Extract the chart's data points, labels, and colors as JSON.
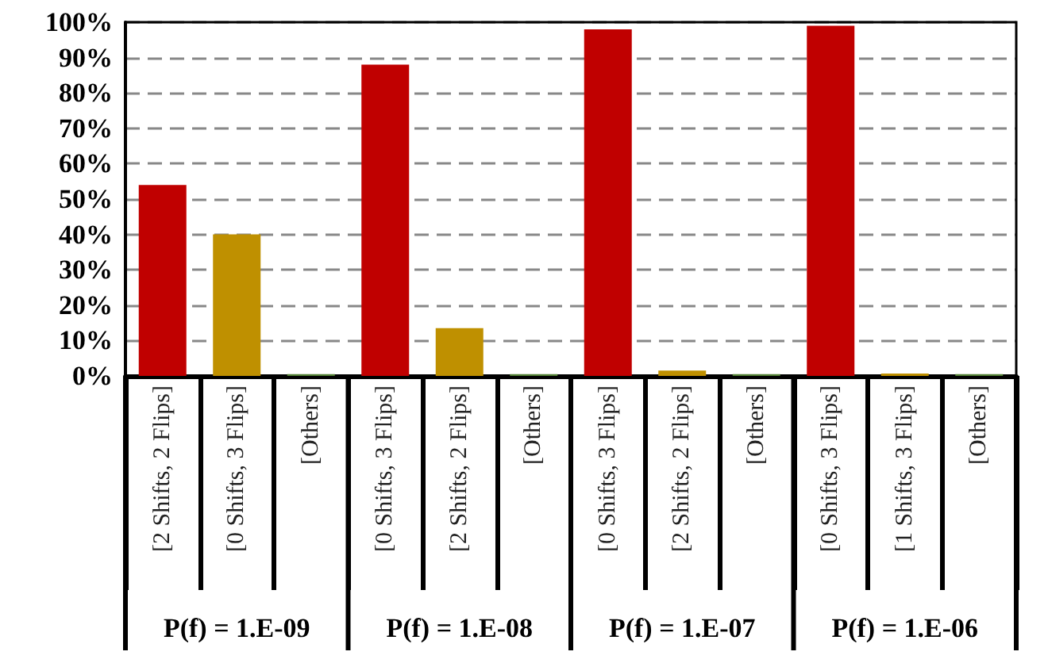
{
  "chart_data": {
    "type": "bar",
    "categories": [
      "[2 Shifts, 2 Flips]",
      "[0 Shifts, 3 Flips]",
      "[Others]",
      "[0 Shifts, 3 Flips]",
      "[2 Shifts, 2 Flips]",
      "[Others]",
      "[0 Shifts, 3 Flips]",
      "[2 Shifts, 2 Flips]",
      "[Others]",
      "[0 Shifts, 3 Flips]",
      "[1 Shifts, 3 Flips]",
      "[Others]"
    ],
    "values": [
      54,
      40,
      0.5,
      88,
      13.5,
      0.5,
      98,
      1.5,
      0.5,
      99,
      0.7,
      0.5
    ],
    "colors": [
      "#c00000",
      "#bf9000",
      "#548235",
      "#c00000",
      "#bf9000",
      "#548235",
      "#c00000",
      "#bf9000",
      "#548235",
      "#c00000",
      "#bf9000",
      "#548235"
    ],
    "ylim": [
      0,
      100
    ],
    "yticks": [
      {
        "value": 0,
        "label": "0%"
      },
      {
        "value": 10,
        "label": "10%"
      },
      {
        "value": 20,
        "label": "20%"
      },
      {
        "value": 30,
        "label": "30%"
      },
      {
        "value": 40,
        "label": "40%"
      },
      {
        "value": 50,
        "label": "50%"
      },
      {
        "value": 60,
        "label": "60%"
      },
      {
        "value": 70,
        "label": "70%"
      },
      {
        "value": 80,
        "label": "80%"
      },
      {
        "value": 90,
        "label": "90%"
      },
      {
        "value": 100,
        "label": "100%"
      }
    ],
    "annotations": [
      "P(f) = 1.E-09",
      "P(f) = 1.E-08",
      "P(f) = 1.E-07",
      "P(f) = 1.E-06"
    ],
    "grid": "y"
  }
}
